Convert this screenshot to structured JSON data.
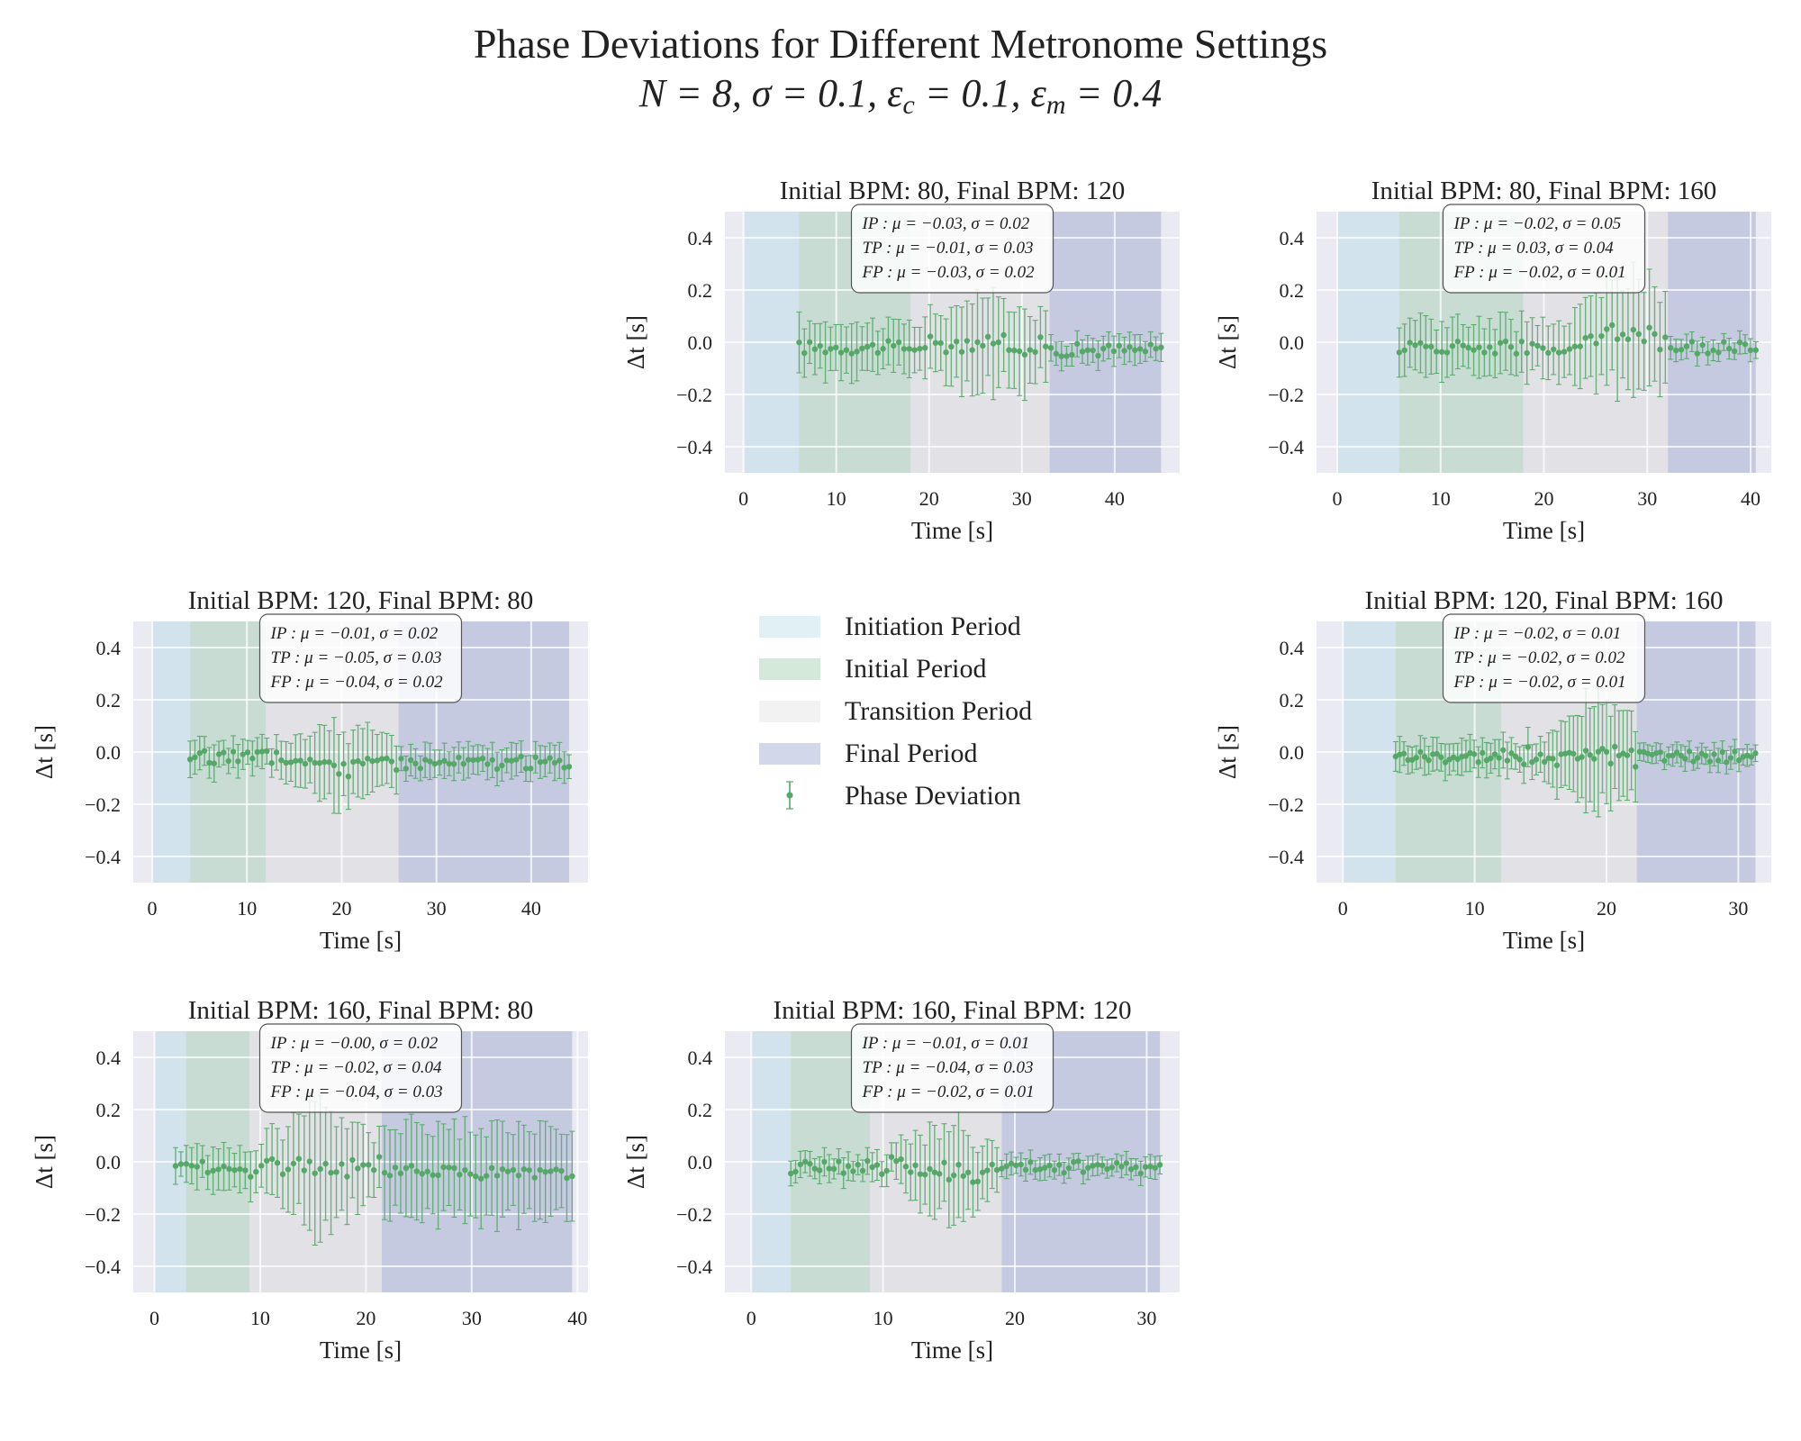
{
  "figure": {
    "title": "Phase Deviations for Different Metronome Settings",
    "subtitle": "N = 8, σ = 0.1, ε_c = 0.1, ε_m = 0.4"
  },
  "legend": {
    "placement": "center",
    "entries": [
      {
        "label": "Initiation Period",
        "color": "#add8e6"
      },
      {
        "label": "Initial Period",
        "color": "#90c6a0"
      },
      {
        "label": "Transition Period",
        "color": "#d3d3d3"
      },
      {
        "label": "Final Period",
        "color": "#8895c5"
      },
      {
        "label": "Phase Deviation",
        "color": "#55a868"
      }
    ]
  },
  "colors": {
    "axes_bg": "#eaeaf2",
    "grid": "#ffffff",
    "marker": "#55a868",
    "initiation": "#add8e6",
    "initial": "#90c6a0",
    "transition": "#d3d3d3",
    "final": "#8895c5"
  },
  "chart_data": [
    {
      "type": "scatter",
      "title": "Initial BPM: 80, Final BPM: 120",
      "xlabel": "Time [s]",
      "ylabel": "Δt [s]",
      "xlim": [
        -2,
        47
      ],
      "ylim": [
        -0.5,
        0.5
      ],
      "xticks": [
        0,
        10,
        20,
        30,
        40
      ],
      "yticks": [
        -0.4,
        -0.2,
        0.0,
        0.2,
        0.4
      ],
      "periods": {
        "initiation": [
          0,
          6
        ],
        "initial": [
          6,
          18
        ],
        "transition": [
          18,
          33
        ],
        "final": [
          33,
          45
        ]
      },
      "stats": [
        {
          "p": "IP",
          "mu": "−0.03",
          "sigma": "0.02"
        },
        {
          "p": "TP",
          "mu": "−0.01",
          "sigma": "0.03"
        },
        {
          "p": "FP",
          "mu": "−0.03",
          "sigma": "0.02"
        }
      ],
      "series": {
        "start": 6,
        "end": 45,
        "n": 70,
        "err": [
          0.06,
          0.1,
          0.18,
          0.05
        ],
        "mean": [
          -0.03,
          -0.02,
          0.0,
          -0.03
        ],
        "peak": 27
      }
    },
    {
      "type": "scatter",
      "title": "Initial BPM: 80, Final BPM: 160",
      "xlabel": "Time [s]",
      "ylabel": "Δt [s]",
      "xlim": [
        -2,
        42
      ],
      "ylim": [
        -0.5,
        0.5
      ],
      "xticks": [
        0,
        10,
        20,
        30,
        40
      ],
      "yticks": [
        -0.4,
        -0.2,
        0.0,
        0.2,
        0.4
      ],
      "periods": {
        "initiation": [
          0,
          6
        ],
        "initial": [
          6,
          18
        ],
        "transition": [
          18,
          32
        ],
        "final": [
          32,
          40.5
        ]
      },
      "stats": [
        {
          "p": "IP",
          "mu": "−0.02",
          "sigma": "0.05"
        },
        {
          "p": "TP",
          "mu": "0.03",
          "sigma": "0.04"
        },
        {
          "p": "FP",
          "mu": "−0.02",
          "sigma": "0.01"
        }
      ],
      "series": {
        "start": 6,
        "end": 40.5,
        "n": 68,
        "err": [
          0.08,
          0.1,
          0.22,
          0.04
        ],
        "mean": [
          -0.04,
          -0.02,
          0.04,
          -0.02
        ],
        "peak": 28
      }
    },
    {
      "type": "scatter",
      "title": "Initial BPM: 120, Final BPM: 80",
      "xlabel": "Time [s]",
      "ylabel": "Δt [s]",
      "xlim": [
        -2,
        46
      ],
      "ylim": [
        -0.5,
        0.5
      ],
      "xticks": [
        0,
        10,
        20,
        30,
        40
      ],
      "yticks": [
        -0.4,
        -0.2,
        0.0,
        0.2,
        0.4
      ],
      "periods": {
        "initiation": [
          0,
          4
        ],
        "initial": [
          4,
          12
        ],
        "transition": [
          12,
          26
        ],
        "final": [
          26,
          44
        ]
      },
      "stats": [
        {
          "p": "IP",
          "mu": "−0.01",
          "sigma": "0.02"
        },
        {
          "p": "TP",
          "mu": "−0.05",
          "sigma": "0.03"
        },
        {
          "p": "FP",
          "mu": "−0.04",
          "sigma": "0.02"
        }
      ],
      "series": {
        "start": 4,
        "end": 44,
        "n": 80,
        "err": [
          0.05,
          0.06,
          0.16,
          0.06
        ],
        "mean": [
          -0.02,
          -0.02,
          -0.05,
          -0.04
        ],
        "peak": 20
      }
    },
    {
      "type": "scatter",
      "title": "Initial BPM: 120, Final BPM: 160",
      "xlabel": "Time [s]",
      "ylabel": "Δt [s]",
      "xlim": [
        -2,
        32.5
      ],
      "ylim": [
        -0.5,
        0.5
      ],
      "xticks": [
        0,
        10,
        20,
        30
      ],
      "yticks": [
        -0.4,
        -0.2,
        0.0,
        0.2,
        0.4
      ],
      "periods": {
        "initiation": [
          0,
          4
        ],
        "initial": [
          4,
          12
        ],
        "transition": [
          12,
          22.3
        ],
        "final": [
          22.3,
          31.3
        ]
      },
      "stats": [
        {
          "p": "IP",
          "mu": "−0.02",
          "sigma": "0.01"
        },
        {
          "p": "TP",
          "mu": "−0.02",
          "sigma": "0.02"
        },
        {
          "p": "FP",
          "mu": "−0.02",
          "sigma": "0.01"
        }
      ],
      "series": {
        "start": 4,
        "end": 31.3,
        "n": 88,
        "err": [
          0.07,
          0.06,
          0.22,
          0.04
        ],
        "mean": [
          -0.02,
          -0.02,
          -0.01,
          -0.02
        ],
        "peak": 19.5
      }
    },
    {
      "type": "scatter",
      "title": "Initial BPM: 160, Final BPM: 80",
      "xlabel": "Time [s]",
      "ylabel": "Δt [s]",
      "xlim": [
        -2,
        41
      ],
      "ylim": [
        -0.5,
        0.5
      ],
      "xticks": [
        0,
        10,
        20,
        30,
        40
      ],
      "yticks": [
        -0.4,
        -0.2,
        0.0,
        0.2,
        0.4
      ],
      "periods": {
        "initiation": [
          0,
          3
        ],
        "initial": [
          3,
          9
        ],
        "transition": [
          9,
          21.5
        ],
        "final": [
          21.5,
          39.5
        ]
      },
      "stats": [
        {
          "p": "IP",
          "mu": "−0.00",
          "sigma": "0.02"
        },
        {
          "p": "TP",
          "mu": "−0.02",
          "sigma": "0.04"
        },
        {
          "p": "FP",
          "mu": "−0.04",
          "sigma": "0.03"
        }
      ],
      "series": {
        "start": 2,
        "end": 39.5,
        "n": 75,
        "err": [
          0.06,
          0.08,
          0.24,
          0.18
        ],
        "mean": [
          -0.03,
          -0.02,
          -0.01,
          -0.04
        ],
        "peak": 16
      }
    },
    {
      "type": "scatter",
      "title": "Initial BPM: 160, Final BPM: 120",
      "xlabel": "Time [s]",
      "ylabel": "Δt [s]",
      "xlim": [
        -2,
        32.5
      ],
      "ylim": [
        -0.5,
        0.5
      ],
      "xticks": [
        0,
        10,
        20,
        30
      ],
      "yticks": [
        -0.4,
        -0.2,
        0.0,
        0.2,
        0.4
      ],
      "periods": {
        "initiation": [
          0,
          3
        ],
        "initial": [
          3,
          9
        ],
        "transition": [
          9,
          19
        ],
        "final": [
          19,
          31
        ]
      },
      "stats": [
        {
          "p": "IP",
          "mu": "−0.01",
          "sigma": "0.01"
        },
        {
          "p": "TP",
          "mu": "−0.04",
          "sigma": "0.03"
        },
        {
          "p": "FP",
          "mu": "−0.02",
          "sigma": "0.01"
        }
      ],
      "series": {
        "start": 3,
        "end": 31,
        "n": 78,
        "err": [
          0.04,
          0.05,
          0.18,
          0.04
        ],
        "mean": [
          -0.01,
          -0.02,
          -0.05,
          -0.02
        ],
        "peak": 15
      }
    }
  ]
}
